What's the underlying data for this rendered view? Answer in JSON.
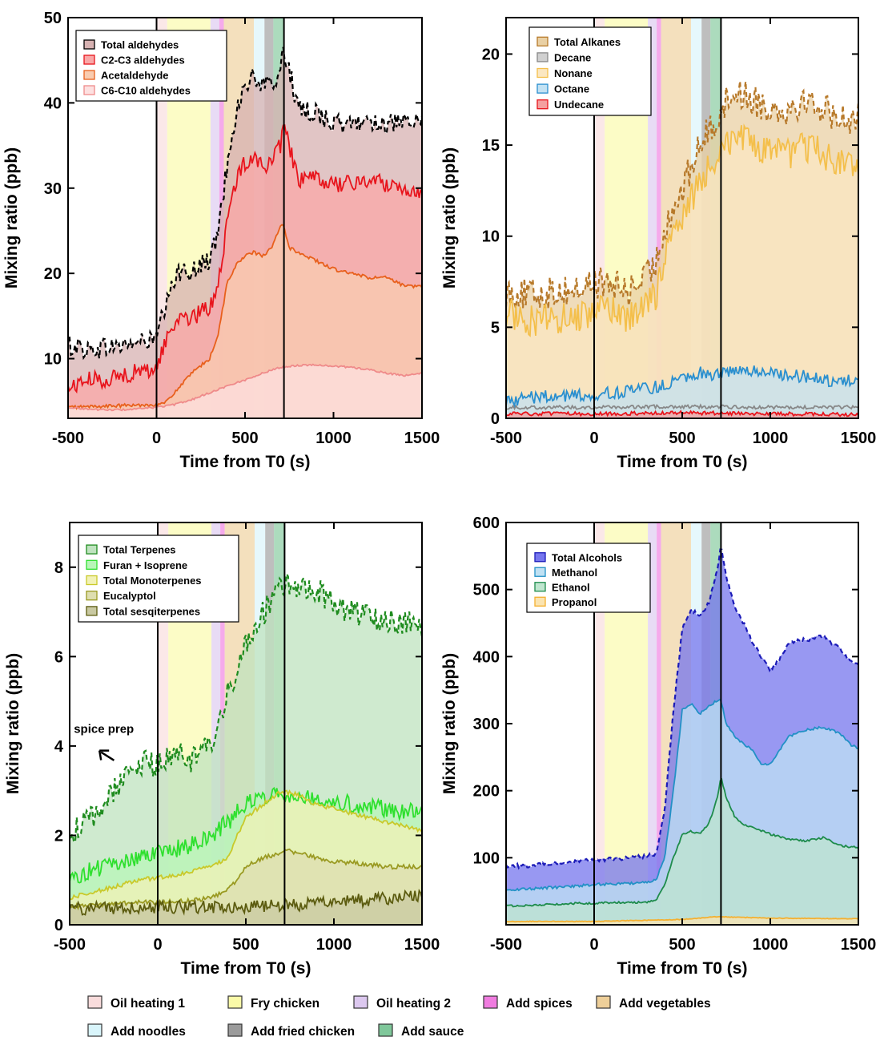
{
  "activities": [
    {
      "key": "oil1",
      "label": "Oil heating 1",
      "color": "#f9dcdc",
      "start": 0,
      "end": 60
    },
    {
      "key": "fry",
      "label": "Fry chicken",
      "color": "#fafaa8",
      "start": 60,
      "end": 305
    },
    {
      "key": "oil2",
      "label": "Oil heating 2",
      "color": "#dcc8ef",
      "start": 305,
      "end": 355
    },
    {
      "key": "spices",
      "label": "Add spices",
      "color": "#f07ce0",
      "start": 355,
      "end": 380
    },
    {
      "key": "veg",
      "label": "Add vegetables",
      "color": "#eecf99",
      "start": 380,
      "end": 550
    },
    {
      "key": "noodles",
      "label": "Add noodles",
      "color": "#d9f5fb",
      "start": 550,
      "end": 610
    },
    {
      "key": "friedchicken",
      "label": "Add fried chicken",
      "color": "#9b9b9b",
      "start": 610,
      "end": 660
    },
    {
      "key": "sauce",
      "label": "Add sauce",
      "color": "#7fc79a",
      "start": 660,
      "end": 720
    }
  ],
  "chart_data": [
    {
      "id": "aldehydes",
      "type": "area",
      "xlabel": "Time from T0 (s)",
      "ylabel": "Mixing ratio (ppb)",
      "xlim": [
        -500,
        1500
      ],
      "ylim": [
        3,
        50
      ],
      "xticks": [
        -500,
        0,
        500,
        1000,
        1500
      ],
      "yticks": [
        10,
        20,
        30,
        40,
        50
      ],
      "vlines": [
        0,
        720
      ],
      "series": [
        {
          "name": "Total aldehydes",
          "line": "#000000",
          "fill": "#d7b2b2",
          "dashed": true,
          "noise": 1.2,
          "x": [
            -500,
            -450,
            -400,
            -300,
            -200,
            -100,
            -50,
            0,
            50,
            100,
            150,
            200,
            250,
            300,
            350,
            400,
            450,
            500,
            550,
            600,
            650,
            700,
            720,
            750,
            800,
            900,
            1000,
            1100,
            1200,
            1300,
            1400,
            1500
          ],
          "y": [
            11.5,
            11.5,
            11,
            11.3,
            11.5,
            12,
            12,
            12.5,
            16,
            19,
            21,
            20,
            21,
            21.5,
            25,
            33,
            39,
            42,
            43,
            42,
            42,
            44,
            46,
            44,
            39,
            39,
            37.5,
            37.5,
            38,
            37.5,
            37.5,
            37.5
          ]
        },
        {
          "name": "C2-C3 aldehydes",
          "line": "#e8141c",
          "fill": "#f9a7a7",
          "dashed": false,
          "noise": 1.0,
          "x": [
            -500,
            -450,
            -400,
            -300,
            -200,
            -100,
            -50,
            0,
            50,
            100,
            150,
            200,
            250,
            300,
            350,
            400,
            450,
            500,
            550,
            600,
            650,
            700,
            720,
            750,
            800,
            900,
            1000,
            1100,
            1200,
            1300,
            1400,
            1500
          ],
          "y": [
            6.5,
            7,
            7.5,
            7.5,
            8,
            8.5,
            8.5,
            9,
            12,
            14,
            15.5,
            14.5,
            15.5,
            16,
            19,
            26,
            31,
            33,
            34,
            32.5,
            33,
            35,
            37,
            35,
            31,
            31,
            30.5,
            30.5,
            31,
            30.5,
            30,
            29.5
          ]
        },
        {
          "name": "Acetaldehyde",
          "line": "#e8601c",
          "fill": "#f9ccb0",
          "dashed": false,
          "noise": 0.2,
          "x": [
            -500,
            0,
            50,
            100,
            200,
            300,
            350,
            400,
            450,
            500,
            550,
            600,
            650,
            700,
            720,
            750,
            800,
            900,
            1000,
            1100,
            1200,
            1300,
            1400,
            1500
          ],
          "y": [
            4.3,
            4.6,
            4.8,
            6,
            8.3,
            10,
            13,
            19,
            21,
            22,
            22.5,
            22,
            23,
            25.5,
            25.5,
            23,
            22.5,
            21.5,
            20.5,
            20,
            19.5,
            19.5,
            18.5,
            18.5
          ]
        },
        {
          "name": "C6-C10 aldehydes",
          "line": "#ef8a8a",
          "fill": "#fde0e0",
          "dashed": false,
          "noise": 0.1,
          "x": [
            -500,
            -400,
            -300,
            -200,
            -100,
            0,
            100,
            200,
            300,
            400,
            500,
            600,
            700,
            800,
            900,
            1000,
            1100,
            1200,
            1300,
            1400,
            1500
          ],
          "y": [
            4.3,
            4.1,
            4,
            4,
            4.1,
            4.3,
            4.6,
            5.2,
            6,
            6.8,
            7.5,
            8.3,
            9,
            9.2,
            9.3,
            9.1,
            9,
            8.7,
            8.3,
            8,
            8.3
          ]
        }
      ]
    },
    {
      "id": "alkanes",
      "type": "area",
      "xlabel": "Time from T0 (s)",
      "ylabel": "Mixing ratio (ppb)",
      "xlim": [
        -500,
        1500
      ],
      "ylim": [
        0,
        22
      ],
      "xticks": [
        -500,
        0,
        500,
        1000,
        1500
      ],
      "yticks": [
        0,
        5,
        10,
        15,
        20
      ],
      "vlines": [
        0,
        720
      ],
      "series": [
        {
          "name": "Total Alkanes",
          "line": "#b7792a",
          "fill": "#e9d0a4",
          "dashed": true,
          "noise": 0.9,
          "x": [
            -500,
            -400,
            -300,
            -200,
            -100,
            0,
            100,
            200,
            300,
            350,
            400,
            500,
            600,
            700,
            720,
            800,
            900,
            1000,
            1100,
            1200,
            1300,
            1400,
            1500
          ],
          "y": [
            7,
            6.8,
            6.8,
            7,
            7,
            7.5,
            7.3,
            7,
            7.8,
            8.5,
            10.5,
            12.5,
            15,
            16.5,
            17,
            18,
            17.5,
            17,
            17,
            17.5,
            17,
            16.5,
            16.5
          ]
        },
        {
          "name": "Decane",
          "line": "#888888",
          "fill": "#d0d0d0",
          "dashed": false,
          "noise": 0.1,
          "x": [
            -500,
            0,
            500,
            1000,
            1500
          ],
          "y": [
            0.6,
            0.6,
            0.65,
            0.6,
            0.6
          ]
        },
        {
          "name": "Nonane",
          "line": "#f4bf4a",
          "fill": "#fbe7c1",
          "dashed": false,
          "noise": 0.9,
          "x": [
            -500,
            -400,
            -300,
            -200,
            -100,
            0,
            100,
            200,
            300,
            350,
            400,
            500,
            600,
            700,
            720,
            800,
            900,
            1000,
            1100,
            1200,
            1300,
            1400,
            1500
          ],
          "y": [
            5.8,
            5.5,
            5.3,
            5.5,
            5.5,
            6,
            5.8,
            5.5,
            6.2,
            6.8,
            9,
            11,
            13,
            14.5,
            15,
            15.5,
            15,
            14.5,
            14.5,
            15,
            14.5,
            14,
            14
          ]
        },
        {
          "name": "Octane",
          "line": "#2a8fcf",
          "fill": "#c3e2f3",
          "dashed": false,
          "noise": 0.35,
          "x": [
            -500,
            -300,
            0,
            200,
            400,
            500,
            600,
            700,
            800,
            900,
            1000,
            1100,
            1200,
            1300,
            1400,
            1500
          ],
          "y": [
            1,
            1.2,
            1.3,
            1.5,
            1.8,
            2.3,
            2.5,
            2.4,
            2.6,
            2.6,
            2.5,
            2.4,
            2.3,
            2.1,
            2.1,
            2
          ]
        },
        {
          "name": "Undecane",
          "line": "#e8141c",
          "fill": "#f4a0a0",
          "dashed": false,
          "noise": 0.1,
          "x": [
            -500,
            0,
            500,
            1000,
            1500
          ],
          "y": [
            0.25,
            0.25,
            0.3,
            0.25,
            0.2
          ]
        }
      ]
    },
    {
      "id": "terpenes",
      "type": "area",
      "xlabel": "Time from T0 (s)",
      "ylabel": "Mixing ratio (ppb)",
      "xlim": [
        -500,
        1500
      ],
      "ylim": [
        0,
        9
      ],
      "xticks": [
        -500,
        0,
        500,
        1000,
        1500
      ],
      "yticks": [
        0,
        2,
        4,
        6,
        8
      ],
      "vlines": [
        0,
        720
      ],
      "annotation": {
        "text": "spice prep",
        "x": -340,
        "y": 4.4,
        "arrow_to": [
          -230,
          3.5
        ]
      },
      "series": [
        {
          "name": "Total Terpenes",
          "line": "#1f8c1f",
          "fill": "#bfe3bf",
          "dashed": true,
          "noise": 0.3,
          "x": [
            -500,
            -400,
            -300,
            -200,
            -100,
            0,
            100,
            200,
            300,
            350,
            400,
            500,
            600,
            700,
            720,
            800,
            900,
            1000,
            1100,
            1200,
            1300,
            1400,
            1500
          ],
          "y": [
            2,
            2.3,
            2.7,
            3.3,
            3.6,
            3.6,
            3.8,
            3.7,
            4,
            4.4,
            5.2,
            6.3,
            7,
            7.5,
            7.6,
            7.6,
            7.5,
            7.2,
            7,
            6.9,
            6.8,
            6.8,
            6.7
          ]
        },
        {
          "name": "Furan + Isoprene",
          "line": "#2ee02e",
          "fill": "#b8f5b8",
          "dashed": false,
          "noise": 0.2,
          "x": [
            -500,
            -400,
            -300,
            -200,
            -100,
            0,
            100,
            200,
            300,
            400,
            500,
            600,
            700,
            800,
            900,
            1000,
            1100,
            1200,
            1300,
            1400,
            1500
          ],
          "y": [
            1,
            1.2,
            1.3,
            1.4,
            1.5,
            1.6,
            1.7,
            1.8,
            2,
            2.3,
            2.7,
            2.9,
            2.95,
            2.9,
            2.85,
            2.8,
            2.7,
            2.65,
            2.6,
            2.55,
            2.6
          ]
        },
        {
          "name": "Total Monoterpenes",
          "line": "#c9c92a",
          "fill": "#f2f2b6",
          "dashed": false,
          "noise": 0.05,
          "x": [
            -500,
            -400,
            -300,
            -200,
            -100,
            0,
            100,
            200,
            300,
            400,
            450,
            500,
            600,
            700,
            800,
            900,
            1000,
            1100,
            1200,
            1300,
            1400,
            1500
          ],
          "y": [
            0.6,
            0.7,
            0.8,
            0.9,
            1,
            1.05,
            1.1,
            1.2,
            1.3,
            1.5,
            2,
            2.4,
            2.7,
            3,
            2.9,
            2.7,
            2.6,
            2.5,
            2.4,
            2.3,
            2.2,
            2.1
          ]
        },
        {
          "name": "Eucalyptol",
          "line": "#9a9a22",
          "fill": "#dedeb0",
          "dashed": false,
          "noise": 0.05,
          "x": [
            -500,
            -300,
            -100,
            0,
            200,
            300,
            400,
            450,
            500,
            600,
            700,
            720,
            800,
            900,
            1000,
            1100,
            1200,
            1300,
            1400,
            1500
          ],
          "y": [
            0.4,
            0.45,
            0.5,
            0.5,
            0.55,
            0.6,
            0.8,
            1,
            1.3,
            1.5,
            1.6,
            1.7,
            1.6,
            1.5,
            1.4,
            1.4,
            1.35,
            1.3,
            1.3,
            1.3
          ]
        },
        {
          "name": "Total sesqiterpenes",
          "line": "#5c5c10",
          "fill": "#c9c9a2",
          "dashed": false,
          "noise": 0.15,
          "x": [
            -500,
            0,
            500,
            1000,
            1500
          ],
          "y": [
            0.35,
            0.4,
            0.4,
            0.5,
            0.65
          ]
        }
      ]
    },
    {
      "id": "alcohols",
      "type": "area",
      "xlabel": "Time from T0 (s)",
      "ylabel": "Mixing ratio (ppb)",
      "xlim": [
        -500,
        1500
      ],
      "ylim": [
        0,
        600
      ],
      "xticks": [
        -500,
        0,
        500,
        1000,
        1500
      ],
      "yticks": [
        100,
        200,
        300,
        400,
        500,
        600
      ],
      "vlines": [
        0,
        720
      ],
      "series": [
        {
          "name": "Total Alcohols",
          "line": "#1c1cb8",
          "fill": "#7676ee",
          "dashed": true,
          "noise": 3,
          "x": [
            -500,
            -400,
            -300,
            -200,
            -100,
            0,
            100,
            200,
            300,
            350,
            400,
            450,
            500,
            550,
            600,
            650,
            700,
            720,
            750,
            800,
            850,
            900,
            950,
            1000,
            1050,
            1100,
            1200,
            1300,
            1350,
            1400,
            1450,
            1500
          ],
          "y": [
            88,
            88,
            90,
            92,
            95,
            97,
            98,
            100,
            103,
            105,
            170,
            320,
            440,
            470,
            460,
            480,
            530,
            565,
            520,
            470,
            450,
            420,
            400,
            380,
            395,
            420,
            425,
            430,
            420,
            410,
            395,
            390
          ]
        },
        {
          "name": "Methanol",
          "line": "#2291c6",
          "fill": "#bfe1f3",
          "dashed": false,
          "noise": 2,
          "x": [
            -500,
            -400,
            -300,
            -200,
            -100,
            0,
            100,
            200,
            300,
            350,
            400,
            450,
            500,
            550,
            600,
            650,
            700,
            720,
            750,
            800,
            850,
            900,
            950,
            1000,
            1050,
            1100,
            1200,
            1300,
            1400,
            1450,
            1500
          ],
          "y": [
            52,
            53,
            55,
            56,
            58,
            60,
            61,
            62,
            64,
            66,
            100,
            200,
            320,
            330,
            315,
            325,
            335,
            335,
            300,
            280,
            270,
            260,
            240,
            240,
            260,
            280,
            290,
            295,
            285,
            270,
            262
          ]
        },
        {
          "name": "Ethanol",
          "line": "#1e8c4c",
          "fill": "#bfe6cf",
          "dashed": false,
          "noise": 1.5,
          "x": [
            -500,
            -400,
            -300,
            -200,
            -100,
            0,
            100,
            200,
            300,
            350,
            400,
            450,
            500,
            550,
            600,
            650,
            700,
            720,
            750,
            800,
            850,
            900,
            1000,
            1100,
            1200,
            1300,
            1400,
            1500
          ],
          "y": [
            28,
            29,
            30,
            31,
            32,
            32,
            33,
            33,
            34,
            36,
            60,
            100,
            135,
            140,
            135,
            150,
            190,
            220,
            190,
            160,
            150,
            145,
            135,
            128,
            125,
            130,
            118,
            115
          ]
        },
        {
          "name": "Propanol",
          "line": "#f4b030",
          "fill": "#fbe4b0",
          "dashed": false,
          "noise": 0.5,
          "x": [
            -500,
            0,
            500,
            700,
            1000,
            1500
          ],
          "y": [
            5,
            5,
            8,
            12,
            10,
            9
          ]
        }
      ]
    }
  ]
}
